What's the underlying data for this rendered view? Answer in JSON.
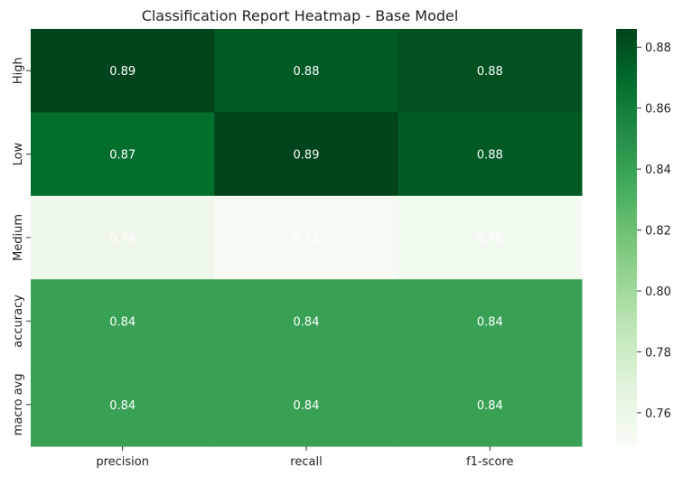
{
  "chart_data": {
    "type": "heatmap",
    "title": "Classification Report Heatmap - Base Model",
    "xlabel": "",
    "ylabel": "",
    "columns": [
      "precision",
      "recall",
      "f1-score"
    ],
    "rows": [
      "High",
      "Low",
      "Medium",
      "accuracy",
      "macro avg"
    ],
    "values": [
      [
        0.886,
        0.877,
        0.881
      ],
      [
        0.868,
        0.886,
        0.877
      ],
      [
        0.758,
        0.751,
        0.755
      ],
      [
        0.84,
        0.84,
        0.84
      ],
      [
        0.84,
        0.84,
        0.84
      ]
    ],
    "labels": [
      [
        "0.89",
        "0.88",
        "0.88"
      ],
      [
        "0.87",
        "0.89",
        "0.88"
      ],
      [
        "0.76",
        "0.75",
        "0.76"
      ],
      [
        "0.84",
        "0.84",
        "0.84"
      ],
      [
        "0.84",
        "0.84",
        "0.84"
      ]
    ],
    "colorbar": {
      "min": 0.749,
      "max": 0.886,
      "ticks": [
        "0.76",
        "0.78",
        "0.80",
        "0.82",
        "0.84",
        "0.86",
        "0.88"
      ],
      "colormap": "Greens"
    },
    "annotation_color": "#ffffff"
  }
}
